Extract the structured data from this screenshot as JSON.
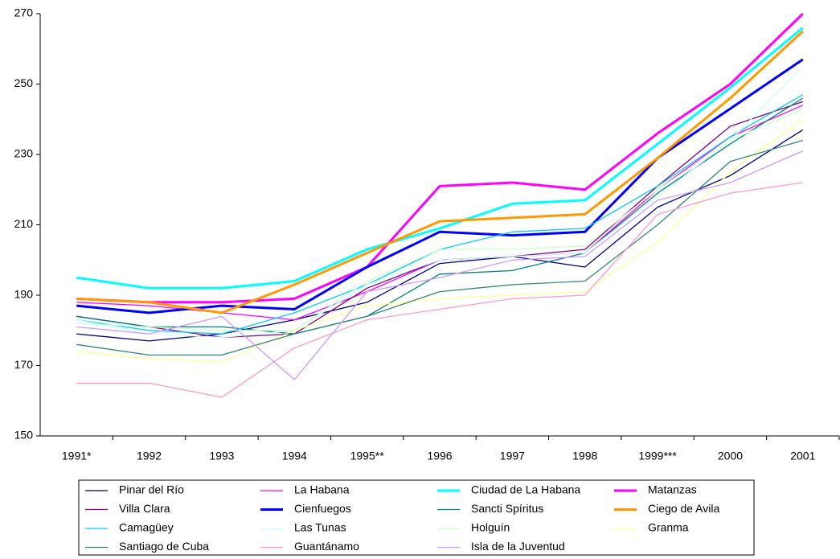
{
  "chart_data": {
    "type": "line",
    "categories": [
      "1991*",
      "1992",
      "1993",
      "1994",
      "1995**",
      "1996",
      "1997",
      "1998",
      "1999***",
      "2000",
      "2001"
    ],
    "ylim": [
      150,
      270
    ],
    "yticks": [
      150,
      170,
      190,
      210,
      230,
      250,
      270
    ],
    "legend": "bottom",
    "series": [
      {
        "name": "Pinar del Río",
        "color": "#000080",
        "line_width": 1.3,
        "values": [
          179,
          177,
          179,
          183,
          188,
          199,
          201,
          198,
          215,
          224,
          237
        ]
      },
      {
        "name": "La Habana",
        "color": "#ff00ff",
        "line_width": 1.3,
        "values": [
          188,
          187,
          185,
          183,
          191,
          200,
          201,
          202,
          220,
          235,
          244
        ]
      },
      {
        "name": "Ciudad de La Habana",
        "color": "#00ffff",
        "line_width": 3,
        "values": [
          195,
          192,
          192,
          194,
          203,
          209,
          216,
          217,
          233,
          249,
          266
        ]
      },
      {
        "name": "Matanzas",
        "color": "#ff00ff",
        "line_width": 3,
        "values": [
          189,
          188,
          188,
          189,
          198,
          221,
          222,
          220,
          236,
          250,
          270
        ]
      },
      {
        "name": "Villa Clara",
        "color": "#800080",
        "line_width": 1.3,
        "values": [
          184,
          181,
          178,
          179,
          192,
          200,
          201,
          203,
          221,
          238,
          245
        ]
      },
      {
        "name": "Cienfuegos",
        "color": "#0000ff",
        "line_width": 3,
        "values": [
          187,
          185,
          187,
          186,
          198,
          208,
          207,
          208,
          229,
          243,
          257
        ]
      },
      {
        "name": "Sancti Spíritus",
        "color": "#008080",
        "line_width": 1.3,
        "values": [
          184,
          181,
          181,
          179,
          184,
          196,
          197,
          202,
          219,
          233,
          246
        ]
      },
      {
        "name": "Ciego de Avila",
        "color": "#ff9900",
        "line_width": 3,
        "values": [
          189,
          188,
          185,
          193,
          202,
          211,
          212,
          213,
          229,
          246,
          265
        ]
      },
      {
        "name": "Camagüey",
        "color": "#00ccff",
        "line_width": 1.3,
        "values": [
          183,
          180,
          179,
          185,
          193,
          203,
          208,
          209,
          221,
          235,
          247
        ]
      },
      {
        "name": "Las Tunas",
        "color": "#ccffff",
        "line_width": 1.3,
        "values": [
          183,
          179,
          178,
          180,
          193,
          200,
          201,
          202,
          218,
          234,
          255
        ]
      },
      {
        "name": "Holguín",
        "color": "#ccffcc",
        "line_width": 1.3,
        "values": [
          182,
          181,
          180,
          180,
          194,
          203,
          203,
          204,
          220,
          234,
          243
        ]
      },
      {
        "name": "Granma",
        "color": "#ffff99",
        "line_width": 1.3,
        "values": [
          174,
          172,
          171,
          180,
          187,
          189,
          190,
          191,
          205,
          225,
          240
        ]
      },
      {
        "name": "Santiago de Cuba",
        "color": "#338877",
        "line_width": 1.3,
        "values": [
          176,
          173,
          173,
          179,
          184,
          191,
          193,
          194,
          210,
          228,
          234
        ]
      },
      {
        "name": "Guantánamo",
        "color": "#ff99cc",
        "line_width": 1.3,
        "values": [
          165,
          165,
          161,
          175,
          183,
          186,
          189,
          190,
          213,
          219,
          222
        ]
      },
      {
        "name": "Isla de la Juventud",
        "color": "#cc99ff",
        "line_width": 1.3,
        "values": [
          181,
          179,
          184,
          166,
          191,
          195,
          200,
          201,
          217,
          222,
          231
        ]
      }
    ]
  }
}
